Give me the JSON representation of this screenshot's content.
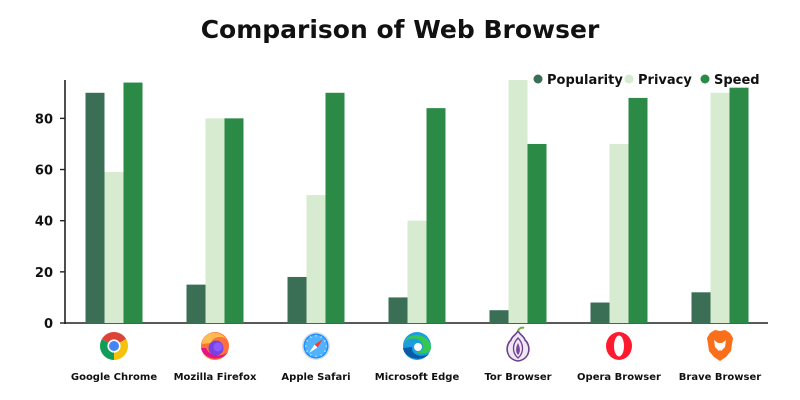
{
  "colors": {
    "popularity": "#3a6e55",
    "privacy": "#d6ebcf",
    "speed": "#2a8a46",
    "axis": "#222222",
    "text": "#111111"
  },
  "chart_data": {
    "type": "bar",
    "title": "Comparison of Web Browser",
    "xlabel": "",
    "ylabel": "",
    "ylim": [
      0,
      95
    ],
    "yticks": [
      0,
      20,
      40,
      60,
      80
    ],
    "grid": false,
    "legend_position": "top-right",
    "categories": [
      "Google Chrome",
      "Mozilla Firefox",
      "Apple Safari",
      "Microsoft Edge",
      "Tor Browser",
      "Opera Browser",
      "Brave Browser"
    ],
    "category_icons": [
      "chrome-icon",
      "firefox-icon",
      "safari-icon",
      "edge-icon",
      "tor-icon",
      "opera-icon",
      "brave-icon"
    ],
    "series": [
      {
        "name": "Popularity",
        "values": [
          90,
          15,
          18,
          10,
          5,
          8,
          12
        ]
      },
      {
        "name": "Privacy",
        "values": [
          59,
          80,
          50,
          40,
          95,
          70,
          90
        ]
      },
      {
        "name": "Speed",
        "values": [
          94,
          80,
          90,
          84,
          70,
          88,
          92
        ]
      }
    ]
  }
}
